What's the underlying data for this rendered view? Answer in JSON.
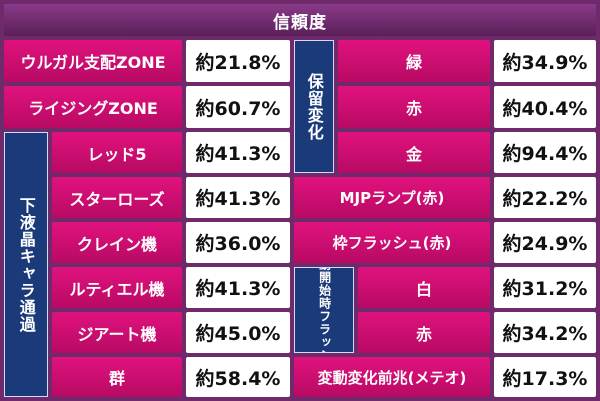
{
  "title": "信頼度",
  "left": {
    "rows": [
      {
        "label": "ウルガル支配ZONE",
        "value": "約21.8%"
      },
      {
        "label": "ライジングZONE",
        "value": "約60.7%"
      }
    ],
    "group_label": "下液晶キャラ通過",
    "group_rows": [
      {
        "label": "レッド5",
        "value": "約41.3%"
      },
      {
        "label": "スターローズ",
        "value": "約41.3%"
      },
      {
        "label": "クレイン機",
        "value": "約36.0%"
      },
      {
        "label": "ルティエル機",
        "value": "約41.3%"
      },
      {
        "label": "ジアート機",
        "value": "約45.0%"
      },
      {
        "label": "群",
        "value": "約58.4%"
      }
    ]
  },
  "right": {
    "hold_label": "保留変化",
    "hold_rows": [
      {
        "label": "緑",
        "value": "約34.9%"
      },
      {
        "label": "赤",
        "value": "約40.4%"
      },
      {
        "label": "金",
        "value": "約94.4%"
      }
    ],
    "rows_a": [
      {
        "label": "MJPランプ(赤)",
        "value": "約22.2%"
      },
      {
        "label": "枠フラッシュ(赤)",
        "value": "約24.9%"
      }
    ],
    "flash_label": "変動開始時フラッシュ",
    "flash_rows": [
      {
        "label": "白",
        "value": "約31.2%"
      },
      {
        "label": "赤",
        "value": "約34.2%"
      }
    ],
    "last_row": {
      "label": "変動変化前兆(メテオ)",
      "value": "約17.3%"
    }
  }
}
